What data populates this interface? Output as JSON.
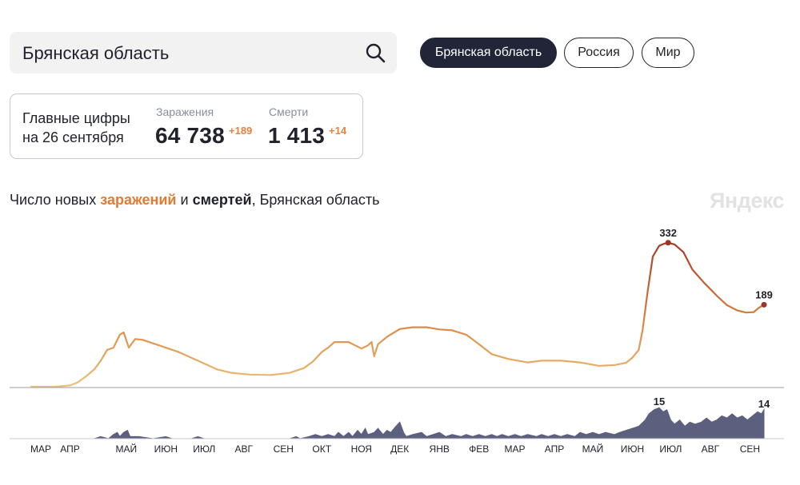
{
  "search": {
    "value": "Брянская область"
  },
  "region_tabs": [
    {
      "label": "Брянская область",
      "active": true
    },
    {
      "label": "Россия",
      "active": false
    },
    {
      "label": "Мир",
      "active": false
    }
  ],
  "summary": {
    "caption_line1": "Главные цифры",
    "caption_line2": "на 26 сентября",
    "infections_label": "Заражения",
    "infections_value": "64 738",
    "infections_delta": "+189",
    "deaths_label": "Смерти",
    "deaths_value": "1 413",
    "deaths_delta": "+14"
  },
  "chart_title": {
    "prefix": "Число новых ",
    "infections": "заражений",
    "middle": " и ",
    "deaths": "смертей",
    "suffix": ", Брянская область"
  },
  "watermark": "Яндекс",
  "colors": {
    "infections_low": "#ebc27a",
    "infections_mid": "#d9823f",
    "infections_high": "#9e3324",
    "deaths_fill": "#5d5f7e",
    "accent": "#e6803c",
    "tab_active": "#222538"
  },
  "chart_data": [
    {
      "type": "line",
      "name": "Заражения",
      "x_unit": "date",
      "x_range": [
        "2020-03-01",
        "2021-09-26"
      ],
      "ylim": [
        0,
        350
      ],
      "points": [
        [
          "2020-03-01",
          0
        ],
        [
          "2020-03-20",
          0
        ],
        [
          "2020-04-01",
          3
        ],
        [
          "2020-04-07",
          10
        ],
        [
          "2020-04-14",
          25
        ],
        [
          "2020-04-20",
          40
        ],
        [
          "2020-04-25",
          60
        ],
        [
          "2020-04-30",
          85
        ],
        [
          "2020-05-05",
          90
        ],
        [
          "2020-05-10",
          120
        ],
        [
          "2020-05-13",
          125
        ],
        [
          "2020-05-17",
          90
        ],
        [
          "2020-05-22",
          110
        ],
        [
          "2020-05-28",
          108
        ],
        [
          "2020-06-10",
          95
        ],
        [
          "2020-06-25",
          80
        ],
        [
          "2020-07-10",
          60
        ],
        [
          "2020-07-25",
          40
        ],
        [
          "2020-08-05",
          32
        ],
        [
          "2020-08-20",
          28
        ],
        [
          "2020-09-05",
          27
        ],
        [
          "2020-09-20",
          32
        ],
        [
          "2020-10-01",
          43
        ],
        [
          "2020-10-08",
          58
        ],
        [
          "2020-10-15",
          80
        ],
        [
          "2020-10-20",
          90
        ],
        [
          "2020-10-25",
          103
        ],
        [
          "2020-11-05",
          103
        ],
        [
          "2020-11-15",
          88
        ],
        [
          "2020-11-20",
          95
        ],
        [
          "2020-11-23",
          103
        ],
        [
          "2020-11-25",
          70
        ],
        [
          "2020-11-28",
          98
        ],
        [
          "2020-12-05",
          115
        ],
        [
          "2020-12-15",
          133
        ],
        [
          "2020-12-25",
          137
        ],
        [
          "2021-01-05",
          137
        ],
        [
          "2021-01-15",
          132
        ],
        [
          "2021-01-25",
          130
        ],
        [
          "2021-02-05",
          120
        ],
        [
          "2021-02-15",
          98
        ],
        [
          "2021-02-25",
          75
        ],
        [
          "2021-03-10",
          64
        ],
        [
          "2021-03-25",
          56
        ],
        [
          "2021-04-05",
          60
        ],
        [
          "2021-04-20",
          60
        ],
        [
          "2021-05-05",
          56
        ],
        [
          "2021-05-20",
          48
        ],
        [
          "2021-06-01",
          50
        ],
        [
          "2021-06-10",
          55
        ],
        [
          "2021-06-15",
          67
        ],
        [
          "2021-06-20",
          85
        ],
        [
          "2021-06-23",
          130
        ],
        [
          "2021-06-27",
          220
        ],
        [
          "2021-07-01",
          300
        ],
        [
          "2021-07-06",
          325
        ],
        [
          "2021-07-10",
          330
        ],
        [
          "2021-07-13",
          332
        ],
        [
          "2021-07-18",
          328
        ],
        [
          "2021-07-25",
          310
        ],
        [
          "2021-08-01",
          270
        ],
        [
          "2021-08-10",
          240
        ],
        [
          "2021-08-20",
          210
        ],
        [
          "2021-08-28",
          188
        ],
        [
          "2021-09-05",
          176
        ],
        [
          "2021-09-12",
          171
        ],
        [
          "2021-09-18",
          172
        ],
        [
          "2021-09-22",
          182
        ],
        [
          "2021-09-26",
          189
        ]
      ],
      "labels": [
        {
          "x": "2021-07-13",
          "y": 332,
          "text": "332"
        },
        {
          "x": "2021-09-26",
          "y": 189,
          "text": "189"
        }
      ]
    },
    {
      "type": "area",
      "name": "Смерти",
      "x_unit": "date",
      "x_range": [
        "2020-03-01",
        "2021-09-26"
      ],
      "ylim": [
        0,
        17
      ],
      "points": [
        [
          "2020-03-01",
          0
        ],
        [
          "2020-04-20",
          0
        ],
        [
          "2020-04-25",
          1
        ],
        [
          "2020-05-01",
          0
        ],
        [
          "2020-05-05",
          2
        ],
        [
          "2020-05-08",
          3
        ],
        [
          "2020-05-10",
          1
        ],
        [
          "2020-05-13",
          3
        ],
        [
          "2020-05-16",
          4
        ],
        [
          "2020-05-18",
          1
        ],
        [
          "2020-05-25",
          1
        ],
        [
          "2020-06-05",
          0
        ],
        [
          "2020-06-15",
          1
        ],
        [
          "2020-06-20",
          0
        ],
        [
          "2020-07-05",
          0
        ],
        [
          "2020-07-10",
          1
        ],
        [
          "2020-07-15",
          0
        ],
        [
          "2020-09-20",
          0
        ],
        [
          "2020-09-25",
          1
        ],
        [
          "2020-09-28",
          0
        ],
        [
          "2020-10-05",
          1
        ],
        [
          "2020-10-10",
          2
        ],
        [
          "2020-10-15",
          1
        ],
        [
          "2020-10-20",
          2
        ],
        [
          "2020-10-25",
          1
        ],
        [
          "2020-10-28",
          3
        ],
        [
          "2020-11-01",
          1
        ],
        [
          "2020-11-05",
          3
        ],
        [
          "2020-11-08",
          1
        ],
        [
          "2020-11-12",
          4
        ],
        [
          "2020-11-15",
          2
        ],
        [
          "2020-11-18",
          5
        ],
        [
          "2020-11-20",
          2
        ],
        [
          "2020-11-25",
          3
        ],
        [
          "2020-11-28",
          5
        ],
        [
          "2020-12-02",
          2
        ],
        [
          "2020-12-05",
          4
        ],
        [
          "2020-12-08",
          3
        ],
        [
          "2020-12-12",
          6
        ],
        [
          "2020-12-15",
          8
        ],
        [
          "2020-12-18",
          3
        ],
        [
          "2020-12-20",
          1
        ],
        [
          "2020-12-25",
          2
        ],
        [
          "2021-01-01",
          3
        ],
        [
          "2021-01-05",
          1
        ],
        [
          "2021-01-10",
          2
        ],
        [
          "2021-01-15",
          3
        ],
        [
          "2021-01-20",
          1
        ],
        [
          "2021-01-25",
          2
        ],
        [
          "2021-02-01",
          1
        ],
        [
          "2021-02-05",
          2
        ],
        [
          "2021-02-10",
          1
        ],
        [
          "2021-02-15",
          2
        ],
        [
          "2021-02-20",
          1
        ],
        [
          "2021-02-25",
          2
        ],
        [
          "2021-03-01",
          1
        ],
        [
          "2021-03-05",
          2
        ],
        [
          "2021-03-10",
          1
        ],
        [
          "2021-03-15",
          2
        ],
        [
          "2021-03-20",
          1
        ],
        [
          "2021-03-25",
          2
        ],
        [
          "2021-04-01",
          1
        ],
        [
          "2021-04-05",
          2
        ],
        [
          "2021-04-10",
          1
        ],
        [
          "2021-04-15",
          2
        ],
        [
          "2021-04-20",
          1
        ],
        [
          "2021-04-25",
          2
        ],
        [
          "2021-05-01",
          1
        ],
        [
          "2021-05-05",
          3
        ],
        [
          "2021-05-10",
          2
        ],
        [
          "2021-05-15",
          3
        ],
        [
          "2021-05-20",
          2
        ],
        [
          "2021-05-25",
          3
        ],
        [
          "2021-06-01",
          2
        ],
        [
          "2021-06-05",
          3
        ],
        [
          "2021-06-10",
          4
        ],
        [
          "2021-06-15",
          5
        ],
        [
          "2021-06-20",
          6
        ],
        [
          "2021-06-25",
          9
        ],
        [
          "2021-06-28",
          12
        ],
        [
          "2021-07-02",
          14
        ],
        [
          "2021-07-06",
          15
        ],
        [
          "2021-07-09",
          13
        ],
        [
          "2021-07-12",
          14
        ],
        [
          "2021-07-15",
          9
        ],
        [
          "2021-07-18",
          7
        ],
        [
          "2021-07-22",
          9
        ],
        [
          "2021-07-26",
          6
        ],
        [
          "2021-07-30",
          8
        ],
        [
          "2021-08-03",
          7
        ],
        [
          "2021-08-08",
          8
        ],
        [
          "2021-08-12",
          10
        ],
        [
          "2021-08-16",
          8
        ],
        [
          "2021-08-20",
          9
        ],
        [
          "2021-08-24",
          11
        ],
        [
          "2021-08-28",
          10
        ],
        [
          "2021-09-01",
          12
        ],
        [
          "2021-09-05",
          10
        ],
        [
          "2021-09-09",
          11
        ],
        [
          "2021-09-13",
          9
        ],
        [
          "2021-09-17",
          11
        ],
        [
          "2021-09-21",
          13
        ],
        [
          "2021-09-24",
          12
        ],
        [
          "2021-09-26",
          14
        ]
      ],
      "labels": [
        {
          "x": "2021-07-06",
          "y": 15,
          "text": "15"
        },
        {
          "x": "2021-09-26",
          "y": 14,
          "text": "14"
        }
      ]
    }
  ],
  "x_axis_ticks": [
    {
      "date": "2020-03-01",
      "label": "МАР"
    },
    {
      "date": "2020-04-01",
      "label": "АПР"
    },
    {
      "date": "2020-05-15",
      "label": "МАЙ"
    },
    {
      "date": "2020-06-15",
      "label": "ИЮН"
    },
    {
      "date": "2020-07-15",
      "label": "ИЮЛ"
    },
    {
      "date": "2020-08-15",
      "label": "АВГ"
    },
    {
      "date": "2020-09-15",
      "label": "СЕН"
    },
    {
      "date": "2020-10-15",
      "label": "ОКТ"
    },
    {
      "date": "2020-11-15",
      "label": "НОЯ"
    },
    {
      "date": "2020-12-15",
      "label": "ДЕК"
    },
    {
      "date": "2021-01-15",
      "label": "ЯНВ"
    },
    {
      "date": "2021-02-15",
      "label": "ФЕВ"
    },
    {
      "date": "2021-03-15",
      "label": "МАР"
    },
    {
      "date": "2021-04-15",
      "label": "АПР"
    },
    {
      "date": "2021-05-15",
      "label": "МАЙ"
    },
    {
      "date": "2021-06-15",
      "label": "ИЮН"
    },
    {
      "date": "2021-07-15",
      "label": "ИЮЛ"
    },
    {
      "date": "2021-08-15",
      "label": "АВГ"
    },
    {
      "date": "2021-09-15",
      "label": "СЕН"
    }
  ]
}
